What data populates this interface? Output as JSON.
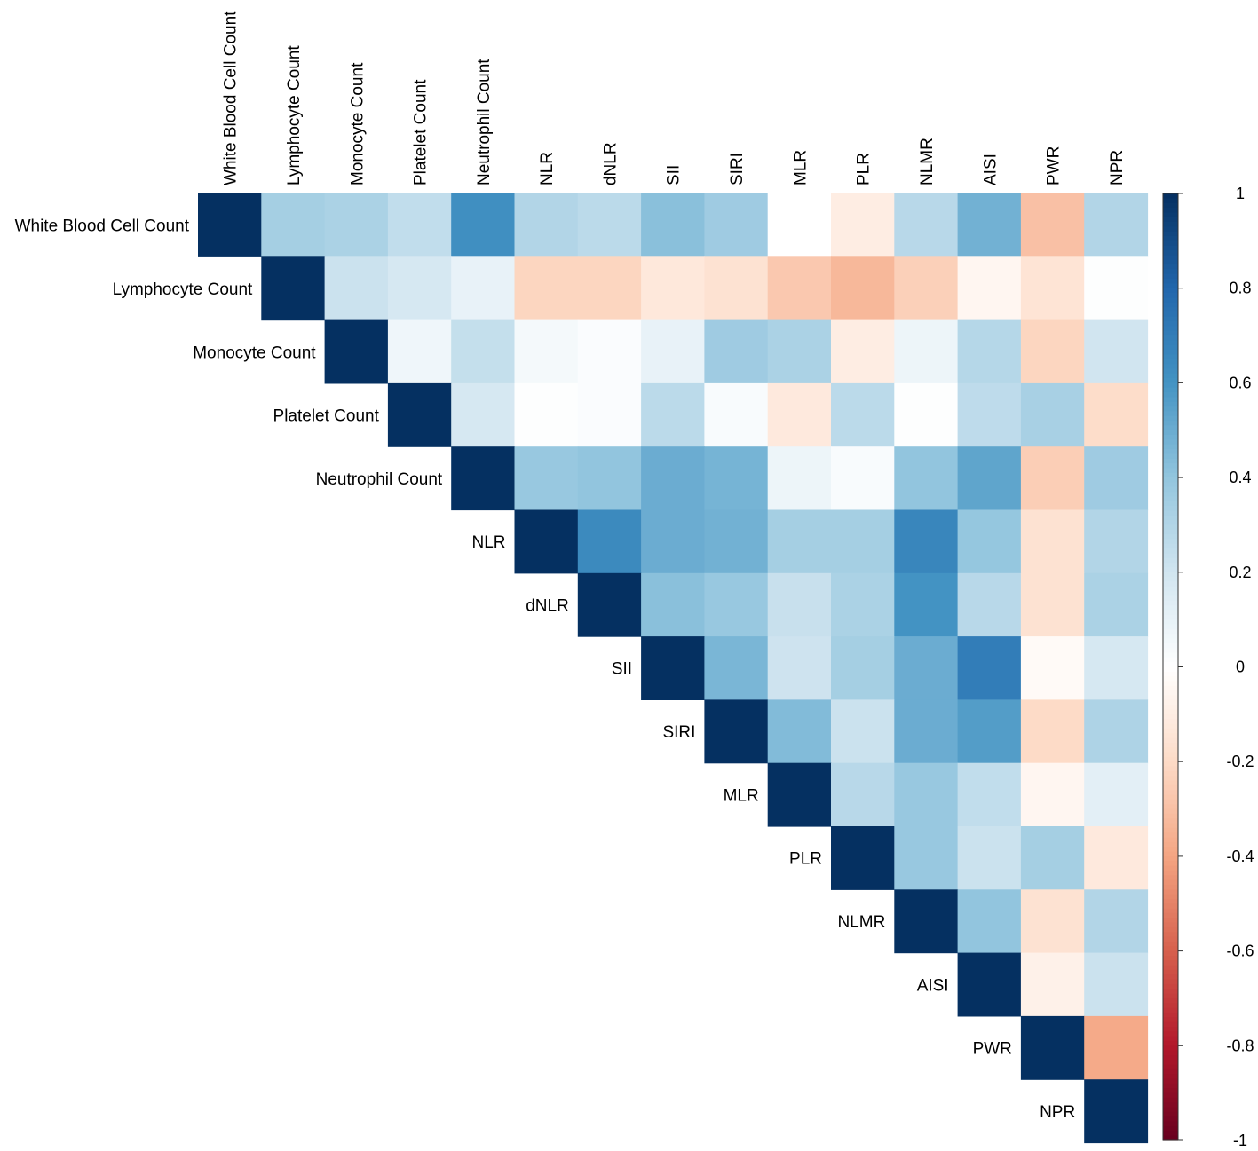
{
  "chart_data": {
    "type": "heatmap",
    "title": "",
    "layout": "upper-triangle",
    "variables": [
      "White Blood Cell Count",
      "Lymphocyte Count",
      "Monocyte Count",
      "Platelet Count",
      "Neutrophil Count",
      "NLR",
      "dNLR",
      "SII",
      "SIRI",
      "MLR",
      "PLR",
      "NLMR",
      "AISI",
      "PWR",
      "NPR"
    ],
    "matrix": [
      [
        1,
        0.34,
        0.32,
        0.25,
        0.62,
        0.3,
        0.27,
        0.42,
        0.36,
        0.0,
        -0.1,
        0.28,
        0.48,
        -0.3,
        0.3
      ],
      [
        null,
        1,
        0.22,
        0.18,
        0.1,
        -0.22,
        -0.22,
        -0.13,
        -0.16,
        -0.27,
        -0.33,
        -0.24,
        -0.05,
        -0.15,
        0.01
      ],
      [
        null,
        null,
        1,
        0.07,
        0.24,
        0.05,
        0.02,
        0.1,
        0.36,
        0.32,
        -0.1,
        0.08,
        0.29,
        -0.22,
        0.2
      ],
      [
        null,
        null,
        null,
        1,
        0.18,
        0.01,
        0.02,
        0.27,
        0.03,
        -0.12,
        0.27,
        0.01,
        0.26,
        0.33,
        -0.19
      ],
      [
        null,
        null,
        null,
        null,
        1,
        0.38,
        0.4,
        0.5,
        0.47,
        0.08,
        0.03,
        0.4,
        0.53,
        -0.25,
        0.36
      ],
      [
        null,
        null,
        null,
        null,
        null,
        1,
        0.64,
        0.5,
        0.48,
        0.34,
        0.34,
        0.66,
        0.39,
        -0.16,
        0.3
      ],
      [
        null,
        null,
        null,
        null,
        null,
        null,
        1,
        0.42,
        0.38,
        0.23,
        0.32,
        0.6,
        0.28,
        -0.16,
        0.32
      ],
      [
        null,
        null,
        null,
        null,
        null,
        null,
        null,
        1,
        0.46,
        0.21,
        0.34,
        0.5,
        0.7,
        -0.03,
        0.18
      ],
      [
        null,
        null,
        null,
        null,
        null,
        null,
        null,
        null,
        1,
        0.44,
        0.22,
        0.5,
        0.56,
        -0.2,
        0.31
      ],
      [
        null,
        null,
        null,
        null,
        null,
        null,
        null,
        null,
        null,
        1,
        0.28,
        0.38,
        0.25,
        -0.05,
        0.12
      ],
      [
        null,
        null,
        null,
        null,
        null,
        null,
        null,
        null,
        null,
        null,
        1,
        0.38,
        0.22,
        0.34,
        -0.12
      ],
      [
        null,
        null,
        null,
        null,
        null,
        null,
        null,
        null,
        null,
        null,
        null,
        1,
        0.4,
        -0.16,
        0.3
      ],
      [
        null,
        null,
        null,
        null,
        null,
        null,
        null,
        null,
        null,
        null,
        null,
        null,
        1,
        -0.08,
        0.22
      ],
      [
        null,
        null,
        null,
        null,
        null,
        null,
        null,
        null,
        null,
        null,
        null,
        null,
        null,
        1,
        -0.38
      ],
      [
        null,
        null,
        null,
        null,
        null,
        null,
        null,
        null,
        null,
        null,
        null,
        null,
        null,
        null,
        1
      ]
    ],
    "colorbar": {
      "range": [
        -1,
        1
      ],
      "ticks": [
        "1",
        "0.8",
        "0.6",
        "0.4",
        "0.2",
        "0",
        "-0.2",
        "-0.4",
        "-0.6",
        "-0.8",
        "-1"
      ],
      "low_color": "#67001F",
      "mid_color": "#FFFFFF",
      "high_color": "#053061"
    }
  }
}
